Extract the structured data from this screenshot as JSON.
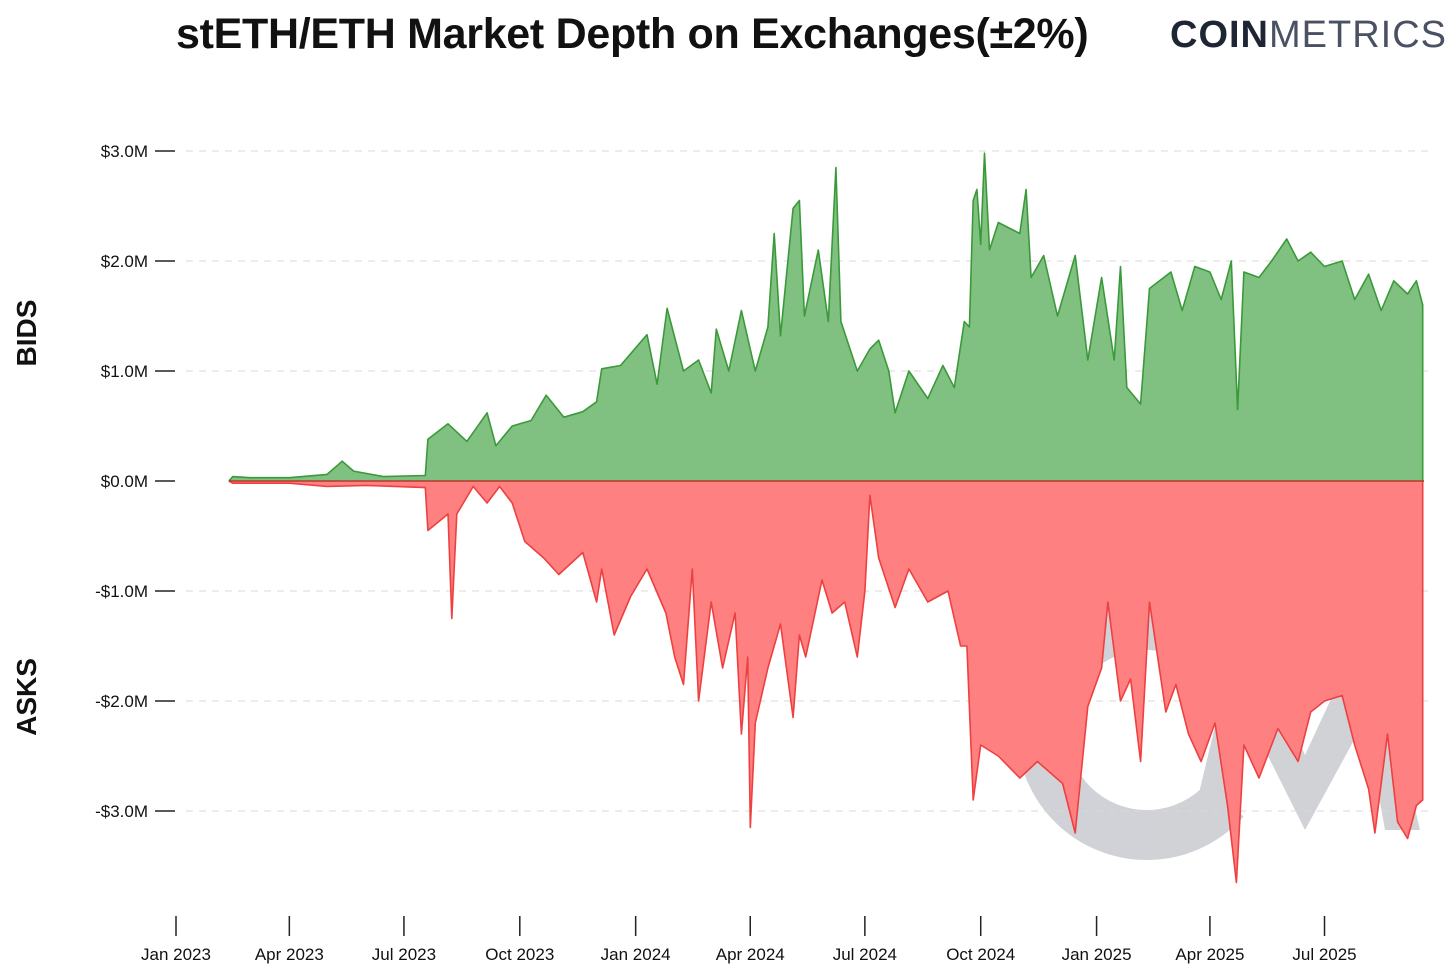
{
  "chart_data": {
    "type": "area",
    "title": "stETH/ETH Market Depth on Exchanges(±2%)",
    "brand": {
      "bold": "COIN",
      "light": "METRICS"
    },
    "watermark": "CM",
    "ylabel_positive": "BIDS",
    "ylabel_negative": "ASKS",
    "ylim": [
      -3.8,
      3.1
    ],
    "yticks": [
      {
        "value": 3.0,
        "label": "$3.0M"
      },
      {
        "value": 2.0,
        "label": "$2.0M"
      },
      {
        "value": 1.0,
        "label": "$1.0M"
      },
      {
        "value": 0.0,
        "label": "$0.0M"
      },
      {
        "value": -1.0,
        "label": "-$1.0M"
      },
      {
        "value": -2.0,
        "label": "-$2.0M"
      },
      {
        "value": -3.0,
        "label": "-$3.0M"
      }
    ],
    "xlim": [
      "2023-01-01",
      "2025-09-18"
    ],
    "xticks": [
      {
        "date": "2023-01-01",
        "label": "Jan 2023"
      },
      {
        "date": "2023-04-01",
        "label": "Apr 2023"
      },
      {
        "date": "2023-07-01",
        "label": "Jul 2023"
      },
      {
        "date": "2023-10-01",
        "label": "Oct 2023"
      },
      {
        "date": "2024-01-01",
        "label": "Jan 2024"
      },
      {
        "date": "2024-04-01",
        "label": "Apr 2024"
      },
      {
        "date": "2024-07-01",
        "label": "Jul 2024"
      },
      {
        "date": "2024-10-01",
        "label": "Oct 2024"
      },
      {
        "date": "2025-01-01",
        "label": "Jan 2025"
      },
      {
        "date": "2025-04-01",
        "label": "Apr 2025"
      },
      {
        "date": "2025-07-01",
        "label": "Jul 2025"
      }
    ],
    "grid": true,
    "colors": {
      "bids_fill": "#80c080",
      "bids_line": "#3a9a3a",
      "asks_fill": "#ff8080",
      "asks_line": "#ee4040",
      "grid": "#d8d8d8",
      "watermark": "#5a5f6e"
    },
    "series": [
      {
        "name": "Bids",
        "points": [
          [
            "2023-02-12",
            0.0
          ],
          [
            "2023-02-15",
            0.04
          ],
          [
            "2023-03-01",
            0.03
          ],
          [
            "2023-04-01",
            0.03
          ],
          [
            "2023-05-01",
            0.06
          ],
          [
            "2023-05-13",
            0.18
          ],
          [
            "2023-05-22",
            0.09
          ],
          [
            "2023-06-15",
            0.04
          ],
          [
            "2023-07-18",
            0.05
          ],
          [
            "2023-07-20",
            0.38
          ],
          [
            "2023-08-05",
            0.52
          ],
          [
            "2023-08-20",
            0.36
          ],
          [
            "2023-09-05",
            0.62
          ],
          [
            "2023-09-12",
            0.32
          ],
          [
            "2023-09-25",
            0.5
          ],
          [
            "2023-10-10",
            0.55
          ],
          [
            "2023-10-22",
            0.78
          ],
          [
            "2023-11-05",
            0.58
          ],
          [
            "2023-11-20",
            0.63
          ],
          [
            "2023-12-01",
            0.72
          ],
          [
            "2023-12-05",
            1.02
          ],
          [
            "2023-12-20",
            1.05
          ],
          [
            "2024-01-10",
            1.33
          ],
          [
            "2024-01-18",
            0.88
          ],
          [
            "2024-01-26",
            1.57
          ],
          [
            "2024-02-08",
            1.0
          ],
          [
            "2024-02-20",
            1.1
          ],
          [
            "2024-03-01",
            0.8
          ],
          [
            "2024-03-05",
            1.38
          ],
          [
            "2024-03-15",
            1.0
          ],
          [
            "2024-03-25",
            1.55
          ],
          [
            "2024-04-05",
            1.0
          ],
          [
            "2024-04-15",
            1.4
          ],
          [
            "2024-04-20",
            2.25
          ],
          [
            "2024-04-25",
            1.32
          ],
          [
            "2024-05-05",
            2.48
          ],
          [
            "2024-05-10",
            2.55
          ],
          [
            "2024-05-14",
            1.5
          ],
          [
            "2024-05-25",
            2.1
          ],
          [
            "2024-06-02",
            1.45
          ],
          [
            "2024-06-08",
            2.85
          ],
          [
            "2024-06-12",
            1.45
          ],
          [
            "2024-06-25",
            1.0
          ],
          [
            "2024-07-05",
            1.2
          ],
          [
            "2024-07-12",
            1.28
          ],
          [
            "2024-07-20",
            1.0
          ],
          [
            "2024-07-25",
            0.62
          ],
          [
            "2024-08-05",
            1.0
          ],
          [
            "2024-08-20",
            0.75
          ],
          [
            "2024-09-01",
            1.05
          ],
          [
            "2024-09-10",
            0.85
          ],
          [
            "2024-09-18",
            1.45
          ],
          [
            "2024-09-22",
            1.4
          ],
          [
            "2024-09-25",
            2.55
          ],
          [
            "2024-09-28",
            2.65
          ],
          [
            "2024-10-01",
            2.15
          ],
          [
            "2024-10-04",
            2.98
          ],
          [
            "2024-10-08",
            2.1
          ],
          [
            "2024-10-15",
            2.35
          ],
          [
            "2024-11-01",
            2.25
          ],
          [
            "2024-11-06",
            2.65
          ],
          [
            "2024-11-10",
            1.85
          ],
          [
            "2024-11-20",
            2.05
          ],
          [
            "2024-12-01",
            1.5
          ],
          [
            "2024-12-15",
            2.05
          ],
          [
            "2024-12-25",
            1.1
          ],
          [
            "2025-01-05",
            1.85
          ],
          [
            "2025-01-15",
            1.1
          ],
          [
            "2025-01-20",
            1.95
          ],
          [
            "2025-01-25",
            0.85
          ],
          [
            "2025-02-05",
            0.7
          ],
          [
            "2025-02-12",
            1.75
          ],
          [
            "2025-03-01",
            1.9
          ],
          [
            "2025-03-10",
            1.55
          ],
          [
            "2025-03-20",
            1.95
          ],
          [
            "2025-04-01",
            1.9
          ],
          [
            "2025-04-10",
            1.65
          ],
          [
            "2025-04-18",
            2.0
          ],
          [
            "2025-04-23",
            0.65
          ],
          [
            "2025-04-28",
            1.9
          ],
          [
            "2025-05-10",
            1.85
          ],
          [
            "2025-05-20",
            2.0
          ],
          [
            "2025-06-01",
            2.2
          ],
          [
            "2025-06-10",
            2.0
          ],
          [
            "2025-06-20",
            2.08
          ],
          [
            "2025-07-01",
            1.95
          ],
          [
            "2025-07-15",
            2.0
          ],
          [
            "2025-07-25",
            1.65
          ],
          [
            "2025-08-05",
            1.88
          ],
          [
            "2025-08-15",
            1.55
          ],
          [
            "2025-08-25",
            1.82
          ],
          [
            "2025-09-05",
            1.7
          ],
          [
            "2025-09-12",
            1.82
          ],
          [
            "2025-09-17",
            1.6
          ]
        ]
      },
      {
        "name": "Asks",
        "points": [
          [
            "2023-02-12",
            0.0
          ],
          [
            "2023-02-15",
            -0.02
          ],
          [
            "2023-04-01",
            -0.02
          ],
          [
            "2023-05-01",
            -0.05
          ],
          [
            "2023-06-01",
            -0.04
          ],
          [
            "2023-07-18",
            -0.06
          ],
          [
            "2023-07-20",
            -0.45
          ],
          [
            "2023-08-05",
            -0.3
          ],
          [
            "2023-08-08",
            -1.25
          ],
          [
            "2023-08-12",
            -0.3
          ],
          [
            "2023-08-25",
            -0.05
          ],
          [
            "2023-09-05",
            -0.2
          ],
          [
            "2023-09-15",
            -0.05
          ],
          [
            "2023-09-25",
            -0.2
          ],
          [
            "2023-10-05",
            -0.55
          ],
          [
            "2023-10-20",
            -0.7
          ],
          [
            "2023-11-01",
            -0.85
          ],
          [
            "2023-11-20",
            -0.65
          ],
          [
            "2023-12-01",
            -1.1
          ],
          [
            "2023-12-05",
            -0.8
          ],
          [
            "2023-12-15",
            -1.4
          ],
          [
            "2023-12-28",
            -1.05
          ],
          [
            "2024-01-10",
            -0.8
          ],
          [
            "2024-01-25",
            -1.2
          ],
          [
            "2024-02-01",
            -1.6
          ],
          [
            "2024-02-08",
            -1.85
          ],
          [
            "2024-02-15",
            -0.8
          ],
          [
            "2024-02-20",
            -2.0
          ],
          [
            "2024-03-01",
            -1.1
          ],
          [
            "2024-03-10",
            -1.7
          ],
          [
            "2024-03-20",
            -1.2
          ],
          [
            "2024-03-25",
            -2.3
          ],
          [
            "2024-03-30",
            -1.6
          ],
          [
            "2024-04-01",
            -3.15
          ],
          [
            "2024-04-05",
            -2.2
          ],
          [
            "2024-04-15",
            -1.7
          ],
          [
            "2024-04-25",
            -1.3
          ],
          [
            "2024-05-05",
            -2.15
          ],
          [
            "2024-05-10",
            -1.4
          ],
          [
            "2024-05-15",
            -1.6
          ],
          [
            "2024-05-28",
            -0.9
          ],
          [
            "2024-06-05",
            -1.2
          ],
          [
            "2024-06-15",
            -1.1
          ],
          [
            "2024-06-25",
            -1.6
          ],
          [
            "2024-07-01",
            -1.0
          ],
          [
            "2024-07-05",
            -0.13
          ],
          [
            "2024-07-12",
            -0.7
          ],
          [
            "2024-07-25",
            -1.15
          ],
          [
            "2024-08-05",
            -0.8
          ],
          [
            "2024-08-20",
            -1.1
          ],
          [
            "2024-09-05",
            -1.0
          ],
          [
            "2024-09-15",
            -1.5
          ],
          [
            "2024-09-20",
            -1.5
          ],
          [
            "2024-09-25",
            -2.9
          ],
          [
            "2024-10-01",
            -2.4
          ],
          [
            "2024-10-15",
            -2.5
          ],
          [
            "2024-11-01",
            -2.7
          ],
          [
            "2024-11-15",
            -2.55
          ],
          [
            "2024-11-25",
            -2.65
          ],
          [
            "2024-12-05",
            -2.75
          ],
          [
            "2024-12-15",
            -3.2
          ],
          [
            "2024-12-25",
            -2.05
          ],
          [
            "2025-01-05",
            -1.7
          ],
          [
            "2025-01-10",
            -1.1
          ],
          [
            "2025-01-20",
            -2.0
          ],
          [
            "2025-01-28",
            -1.8
          ],
          [
            "2025-02-05",
            -2.55
          ],
          [
            "2025-02-12",
            -1.1
          ],
          [
            "2025-02-25",
            -2.1
          ],
          [
            "2025-03-05",
            -1.85
          ],
          [
            "2025-03-15",
            -2.3
          ],
          [
            "2025-03-25",
            -2.55
          ],
          [
            "2025-04-05",
            -2.2
          ],
          [
            "2025-04-15",
            -2.95
          ],
          [
            "2025-04-22",
            -3.65
          ],
          [
            "2025-04-28",
            -2.4
          ],
          [
            "2025-05-10",
            -2.7
          ],
          [
            "2025-05-25",
            -2.25
          ],
          [
            "2025-06-10",
            -2.55
          ],
          [
            "2025-06-20",
            -2.1
          ],
          [
            "2025-07-01",
            -2.0
          ],
          [
            "2025-07-15",
            -1.95
          ],
          [
            "2025-07-25",
            -2.4
          ],
          [
            "2025-08-05",
            -2.8
          ],
          [
            "2025-08-10",
            -3.2
          ],
          [
            "2025-08-20",
            -2.3
          ],
          [
            "2025-08-28",
            -3.1
          ],
          [
            "2025-09-05",
            -3.25
          ],
          [
            "2025-09-12",
            -2.95
          ],
          [
            "2025-09-17",
            -2.9
          ]
        ]
      }
    ]
  }
}
